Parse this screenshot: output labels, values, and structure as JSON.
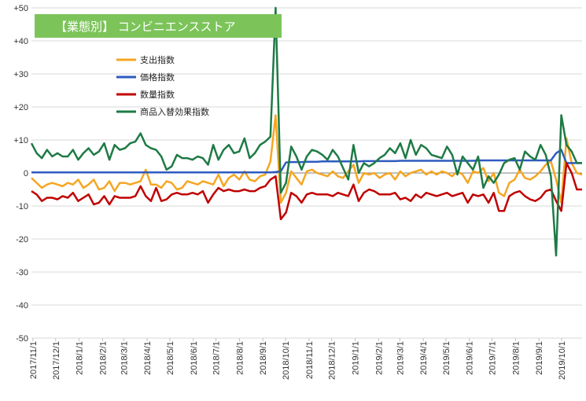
{
  "chart_data": {
    "type": "line",
    "title": "【業態別】 コンビニエンスストア",
    "title_bg_color": "#7cc45a",
    "ylim": [
      -50,
      50
    ],
    "yticks": [
      50,
      40,
      30,
      20,
      10,
      0,
      -10,
      -20,
      -30,
      -40,
      -50
    ],
    "ytick_labels": [
      "+50",
      "+40",
      "+30",
      "+20",
      "+10",
      "0",
      "-10",
      "-20",
      "-30",
      "-40",
      "-50"
    ],
    "x_start": "2017-10-30",
    "x_end": "2019-10-28",
    "x_tick_labels": [
      "2017/11/1",
      "2017/12/1",
      "2018/1/1",
      "2018/2/1",
      "2018/3/1",
      "2018/4/1",
      "2018/5/1",
      "2018/6/1",
      "2018/7/1",
      "2018/8/1",
      "2018/9/1",
      "2018/10/1",
      "2018/11/1",
      "2018/12/1",
      "2019/1/1",
      "2019/2/1",
      "2019/3/1",
      "2019/4/1",
      "2019/5/1",
      "2019/6/1",
      "2019/7/1",
      "2019/8/1",
      "2019/9/1",
      "2019/10/1"
    ],
    "grid": "horizontal",
    "legend_position": "upper-left",
    "series": [
      {
        "name": "支出指数",
        "color": "#f5a623",
        "values": [
          -1.5,
          -3,
          -4.5,
          -3.5,
          -3.0,
          -3.5,
          -4.0,
          -3.0,
          -3.5,
          -2.0,
          -4.5,
          -3.5,
          -2.0,
          -5.0,
          -4.5,
          -2.5,
          -5.5,
          -3.0,
          -3.0,
          -3.5,
          -3.0,
          -2.5,
          1.0,
          -3.5,
          -3.5,
          -4.5,
          -2.5,
          -3.0,
          -5.0,
          -4.5,
          -2.5,
          -3.0,
          -3.5,
          -2.5,
          -3.0,
          -3.5,
          -0.5,
          -4.0,
          -1.5,
          -0.5,
          -2.0,
          0.5,
          -2.0,
          -2.5,
          -1.0,
          -0.5,
          3.5,
          17.5,
          -9.0,
          -6.0,
          0.5,
          -1.5,
          -3.5,
          0.5,
          1.0,
          0.0,
          -0.5,
          -1.0,
          0.5,
          -1.0,
          -1.5,
          0.5,
          2.5,
          -3.0,
          0.0,
          -0.5,
          0.0,
          -1.5,
          -0.5,
          0.0,
          -2.0,
          0.5,
          -1.0,
          0.0,
          0.5,
          1.0,
          -0.5,
          0.5,
          -0.5,
          0.5,
          0.0,
          -1.0,
          0.5,
          -0.5,
          -3.0,
          0.5,
          0.0,
          1.5,
          -2.5,
          0.0,
          -6.0,
          -7.0,
          -3.0,
          -2.0,
          1.0,
          -1.5,
          -2.0,
          -1.0,
          0.5,
          2.5,
          3.5,
          -2.0,
          -9.0,
          10.5,
          3.0,
          0.0,
          -0.5
        ]
      },
      {
        "name": "価格指数",
        "color": "#2e5bbf",
        "values": [
          0.2,
          0.2,
          0.2,
          0.2,
          0.2,
          0.2,
          0.2,
          0.2,
          0.2,
          0.2,
          0.2,
          0.2,
          0.2,
          0.2,
          0.2,
          0.2,
          0.2,
          0.2,
          0.2,
          0.2,
          0.2,
          0.2,
          0.2,
          0.2,
          0.2,
          0.2,
          0.2,
          0.2,
          0.2,
          0.2,
          0.2,
          0.2,
          0.2,
          0.2,
          0.2,
          0.2,
          0.2,
          0.2,
          0.2,
          0.2,
          0.2,
          0.2,
          0.2,
          0.2,
          0.2,
          0.2,
          0.2,
          0.3,
          0.5,
          3.2,
          3.3,
          3.3,
          3.3,
          3.4,
          3.4,
          3.4,
          3.5,
          3.5,
          3.5,
          3.5,
          3.5,
          3.5,
          3.5,
          3.5,
          3.6,
          3.6,
          3.6,
          3.6,
          3.6,
          3.6,
          3.6,
          3.7,
          3.7,
          3.7,
          3.7,
          3.7,
          3.7,
          3.7,
          3.7,
          3.7,
          3.7,
          3.7,
          3.7,
          3.7,
          3.7,
          3.7,
          3.8,
          3.8,
          3.8,
          3.8,
          3.8,
          3.8,
          3.8,
          3.8,
          3.8,
          3.8,
          3.8,
          3.8,
          3.8,
          3.8,
          3.8,
          6.0,
          7.0,
          3.0,
          3.0,
          3.0,
          3.0
        ]
      },
      {
        "name": "数量指数",
        "color": "#c00000",
        "values": [
          -5.5,
          -6.5,
          -8.5,
          -7.5,
          -7.5,
          -8.0,
          -7.0,
          -7.5,
          -6.0,
          -8.5,
          -7.5,
          -6.5,
          -9.5,
          -9.0,
          -7.0,
          -9.5,
          -7.0,
          -7.5,
          -7.5,
          -7.5,
          -7.0,
          -4.0,
          -7.0,
          -8.5,
          -4.5,
          -8.5,
          -8.0,
          -6.5,
          -6.0,
          -6.5,
          -6.5,
          -6.0,
          -6.5,
          -5.5,
          -9.0,
          -6.5,
          -4.5,
          -5.5,
          -5.0,
          -5.5,
          -5.5,
          -5.0,
          -5.5,
          -5.5,
          -4.5,
          -4.0,
          -2.0,
          -1.0,
          -14.0,
          -12.0,
          -6.0,
          -7.0,
          -9.0,
          -6.5,
          -6.0,
          -6.5,
          -6.5,
          -6.5,
          -7.0,
          -6.0,
          -6.5,
          -7.0,
          -3.5,
          -8.5,
          -6.0,
          -5.0,
          -5.5,
          -6.5,
          -6.5,
          -6.5,
          -6.0,
          -8.0,
          -7.5,
          -8.5,
          -6.5,
          -7.5,
          -6.0,
          -6.5,
          -7.0,
          -6.5,
          -6.0,
          -7.0,
          -6.5,
          -6.0,
          -9.0,
          -6.5,
          -7.0,
          -6.5,
          -9.0,
          -6.0,
          -11.5,
          -11.5,
          -7.0,
          -6.0,
          -5.5,
          -7.0,
          -8.0,
          -8.5,
          -7.5,
          -5.5,
          -5.0,
          -8.5,
          -11.5,
          3.0,
          0.0,
          -5.0,
          -5.0
        ]
      },
      {
        "name": "商品入替効果指数",
        "color": "#1e7a45",
        "values": [
          9.0,
          6.0,
          4.5,
          7.0,
          5.0,
          6.0,
          5.0,
          5.0,
          7.0,
          4.0,
          6.0,
          7.5,
          5.5,
          6.5,
          9.0,
          4.0,
          8.5,
          7.0,
          7.5,
          9.0,
          9.5,
          12.0,
          8.5,
          7.5,
          7.0,
          5.0,
          1.0,
          2.0,
          5.5,
          4.5,
          4.5,
          4.0,
          5.0,
          4.5,
          2.5,
          8.5,
          4.0,
          7.0,
          8.5,
          6.0,
          6.5,
          10.5,
          4.5,
          6.0,
          8.5,
          9.5,
          11.0,
          50.0,
          -6.0,
          -3.0,
          8.0,
          5.0,
          1.0,
          5.0,
          7.0,
          6.5,
          5.5,
          4.0,
          7.0,
          5.0,
          1.5,
          -2.0,
          8.5,
          0.0,
          3.0,
          2.0,
          3.0,
          4.5,
          5.5,
          7.5,
          6.0,
          9.0,
          4.5,
          10.0,
          5.5,
          8.5,
          7.5,
          5.5,
          5.0,
          4.5,
          8.0,
          5.5,
          -0.5,
          5.0,
          3.0,
          1.0,
          5.0,
          -4.5,
          -1.0,
          -3.0,
          -0.5,
          3.0,
          4.0,
          4.5,
          1.0,
          6.5,
          5.0,
          4.0,
          8.5,
          5.5,
          -1.0,
          -25.0,
          17.5,
          8.5,
          6.5,
          3.0,
          3.0
        ]
      }
    ]
  }
}
